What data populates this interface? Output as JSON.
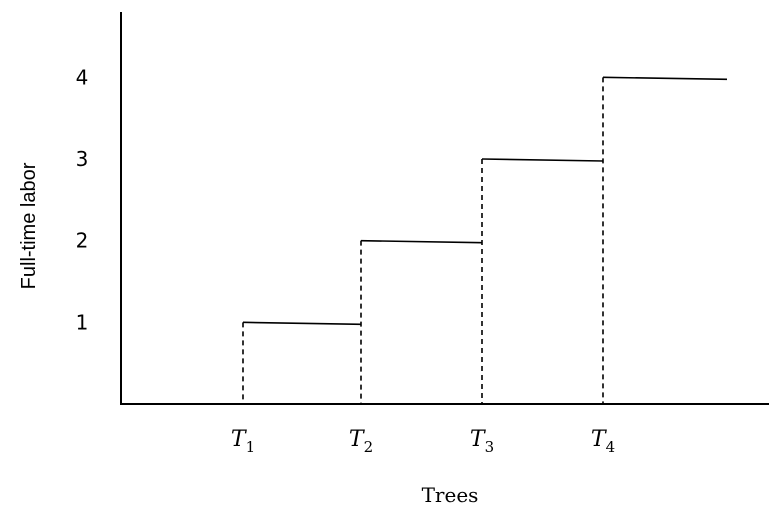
{
  "chart_data": {
    "type": "line",
    "title": "",
    "xlabel": "Trees",
    "ylabel": "Full-time labor",
    "x_ticks": [
      {
        "main": "T",
        "sub": "1"
      },
      {
        "main": "T",
        "sub": "2"
      },
      {
        "main": "T",
        "sub": "3"
      },
      {
        "main": "T",
        "sub": "4"
      }
    ],
    "y_ticks": [
      "1",
      "2",
      "3",
      "4"
    ],
    "ylim": [
      0,
      4.8
    ],
    "series": [
      {
        "style": "step",
        "steps": [
          {
            "from": "T1",
            "to": "T2",
            "y": 1
          },
          {
            "from": "T2",
            "to": "T3",
            "y": 2
          },
          {
            "from": "T3",
            "to": "T4",
            "y": 3
          },
          {
            "from": "T4",
            "to": "beyond T4",
            "y": 4
          }
        ]
      }
    ],
    "dashed_risers_at": [
      "T1",
      "T2",
      "T3",
      "T4"
    ],
    "grid": false,
    "legend": "none",
    "colors": {
      "line": "#000000",
      "background": "#ffffff"
    }
  }
}
